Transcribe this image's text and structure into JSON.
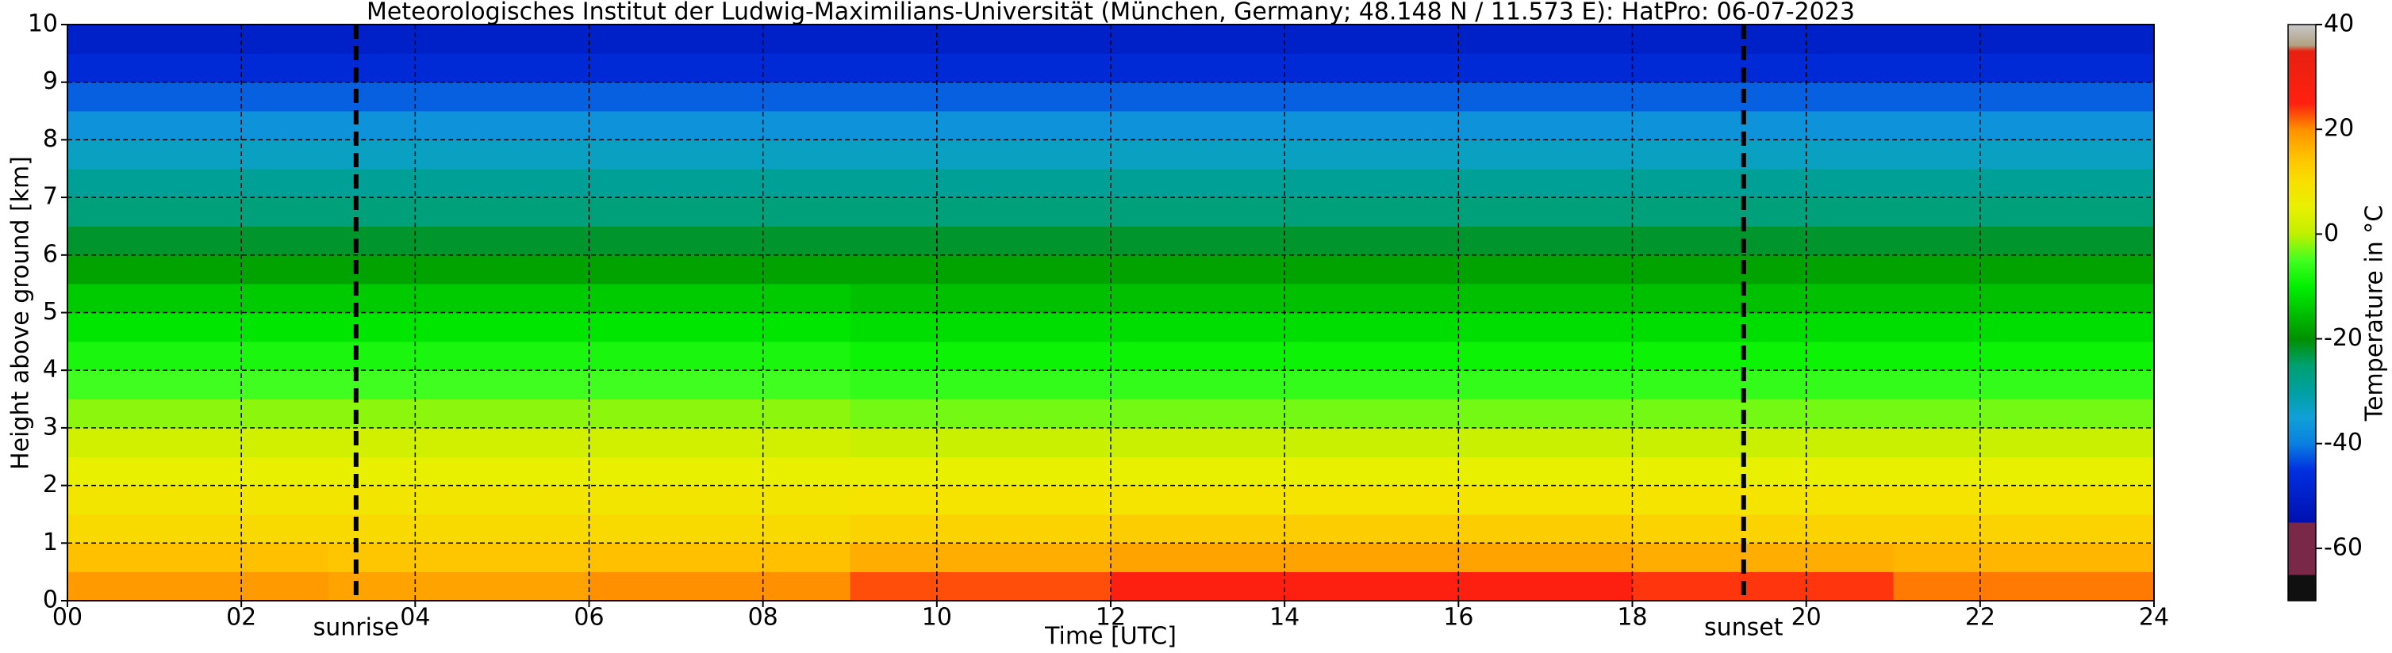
{
  "chart_data": {
    "type": "heatmap",
    "title": "Meteorologisches Institut der Ludwig-Maximilians-Universität (München, Germany; 48.148 N / 11.573 E):    HatPro: 06-07-2023",
    "x_label": "Time [UTC]",
    "y_label": "Height above ground [km]",
    "colorbar_label": "Temperature in °C",
    "x": [
      0,
      3,
      6,
      9,
      12,
      15,
      18,
      21,
      24
    ],
    "y": [
      0,
      0.5,
      1,
      1.5,
      2,
      2.5,
      3,
      3.5,
      4,
      4.5,
      5,
      5.5,
      6,
      6.5,
      7,
      7.5,
      8,
      8.5,
      9,
      9.5,
      10
    ],
    "values": [
      [
        19,
        18,
        20,
        23,
        26,
        26,
        24,
        21
      ],
      [
        15,
        14,
        15,
        17,
        18,
        18,
        17,
        16
      ],
      [
        11,
        11,
        11,
        12,
        13,
        13,
        12,
        12
      ],
      [
        8,
        8,
        8,
        9,
        9,
        9,
        9,
        9
      ],
      [
        5,
        5,
        5,
        5,
        5,
        5,
        5,
        5
      ],
      [
        2,
        2,
        2,
        1,
        1,
        1,
        1,
        1
      ],
      [
        -2,
        -2,
        -2,
        -3,
        -3,
        -3,
        -3,
        -3
      ],
      [
        -5,
        -5,
        -5,
        -6,
        -6,
        -6,
        -6,
        -6
      ],
      [
        -8,
        -8,
        -8,
        -9,
        -9,
        -9,
        -9,
        -9
      ],
      [
        -11,
        -11,
        -11,
        -12,
        -12,
        -12,
        -12,
        -12
      ],
      [
        -14,
        -14,
        -14,
        -15,
        -15,
        -15,
        -15,
        -15
      ],
      [
        -18,
        -18,
        -18,
        -18,
        -18,
        -18,
        -18,
        -18
      ],
      [
        -22,
        -22,
        -22,
        -22,
        -22,
        -22,
        -22,
        -22
      ],
      [
        -26,
        -26,
        -26,
        -26,
        -26,
        -26,
        -26,
        -26
      ],
      [
        -29,
        -29,
        -29,
        -29,
        -29,
        -29,
        -29,
        -29
      ],
      [
        -33,
        -33,
        -33,
        -33,
        -33,
        -33,
        -33,
        -33
      ],
      [
        -37,
        -37,
        -37,
        -37,
        -37,
        -37,
        -37,
        -37
      ],
      [
        -42,
        -42,
        -42,
        -42,
        -42,
        -42,
        -42,
        -42
      ],
      [
        -47,
        -47,
        -47,
        -47,
        -47,
        -47,
        -47,
        -47
      ],
      [
        -50,
        -50,
        -50,
        -50,
        -50,
        -50,
        -50,
        -50
      ]
    ],
    "xlim": [
      0,
      24
    ],
    "ylim": [
      0,
      10
    ],
    "clim": [
      -70,
      40
    ],
    "xticks": [
      {
        "value": 0,
        "label": "00"
      },
      {
        "value": 2,
        "label": "02"
      },
      {
        "value": 4,
        "label": "04"
      },
      {
        "value": 6,
        "label": "06"
      },
      {
        "value": 8,
        "label": "08"
      },
      10,
      12,
      14,
      16,
      18,
      20,
      22,
      24
    ],
    "yticks": [
      0,
      1,
      2,
      3,
      4,
      5,
      6,
      7,
      8,
      9,
      10
    ],
    "cticks": [
      -60,
      -40,
      -20,
      0,
      20,
      40
    ],
    "grid": true,
    "events": [
      {
        "label": "sunrise",
        "x": 3.32
      },
      {
        "label": "sunset",
        "x": 19.28
      }
    ],
    "colorscale": [
      {
        "value": -70,
        "color": "#101010"
      },
      {
        "value": -65,
        "color": "#101010"
      },
      {
        "value": -65,
        "color": "#7a2848"
      },
      {
        "value": -55,
        "color": "#7a2848"
      },
      {
        "value": -55,
        "color": "#0010b0"
      },
      {
        "value": -45,
        "color": "#0030e0"
      },
      {
        "value": -40,
        "color": "#0a80e0"
      },
      {
        "value": -35,
        "color": "#10a0d8"
      },
      {
        "value": -30,
        "color": "#00a0a0"
      },
      {
        "value": -25,
        "color": "#00a070"
      },
      {
        "value": -20,
        "color": "#009000"
      },
      {
        "value": -15,
        "color": "#00c000"
      },
      {
        "value": -10,
        "color": "#00f000"
      },
      {
        "value": -5,
        "color": "#40ff20"
      },
      {
        "value": 0,
        "color": "#c0f000"
      },
      {
        "value": 5,
        "color": "#e8f000"
      },
      {
        "value": 10,
        "color": "#f8e000"
      },
      {
        "value": 15,
        "color": "#ffc000"
      },
      {
        "value": 20,
        "color": "#ff9000"
      },
      {
        "value": 25,
        "color": "#ff2010"
      },
      {
        "value": 35,
        "color": "#e82010"
      },
      {
        "value": 36,
        "color": "#b0a080"
      },
      {
        "value": 40,
        "color": "#c8c8c8"
      }
    ]
  }
}
